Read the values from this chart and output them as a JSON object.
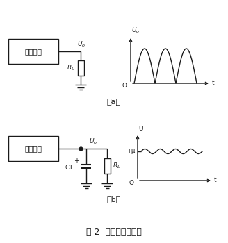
{
  "title": "图 2  电容滤波原理图",
  "label_a": "（a）",
  "label_b": "（b）",
  "box_text": "整流电路",
  "bg_color": "#ffffff",
  "line_color": "#1a1a1a",
  "font_color": "#1a1a1a",
  "fig_width": 3.28,
  "fig_height": 3.5,
  "dpi": 100
}
